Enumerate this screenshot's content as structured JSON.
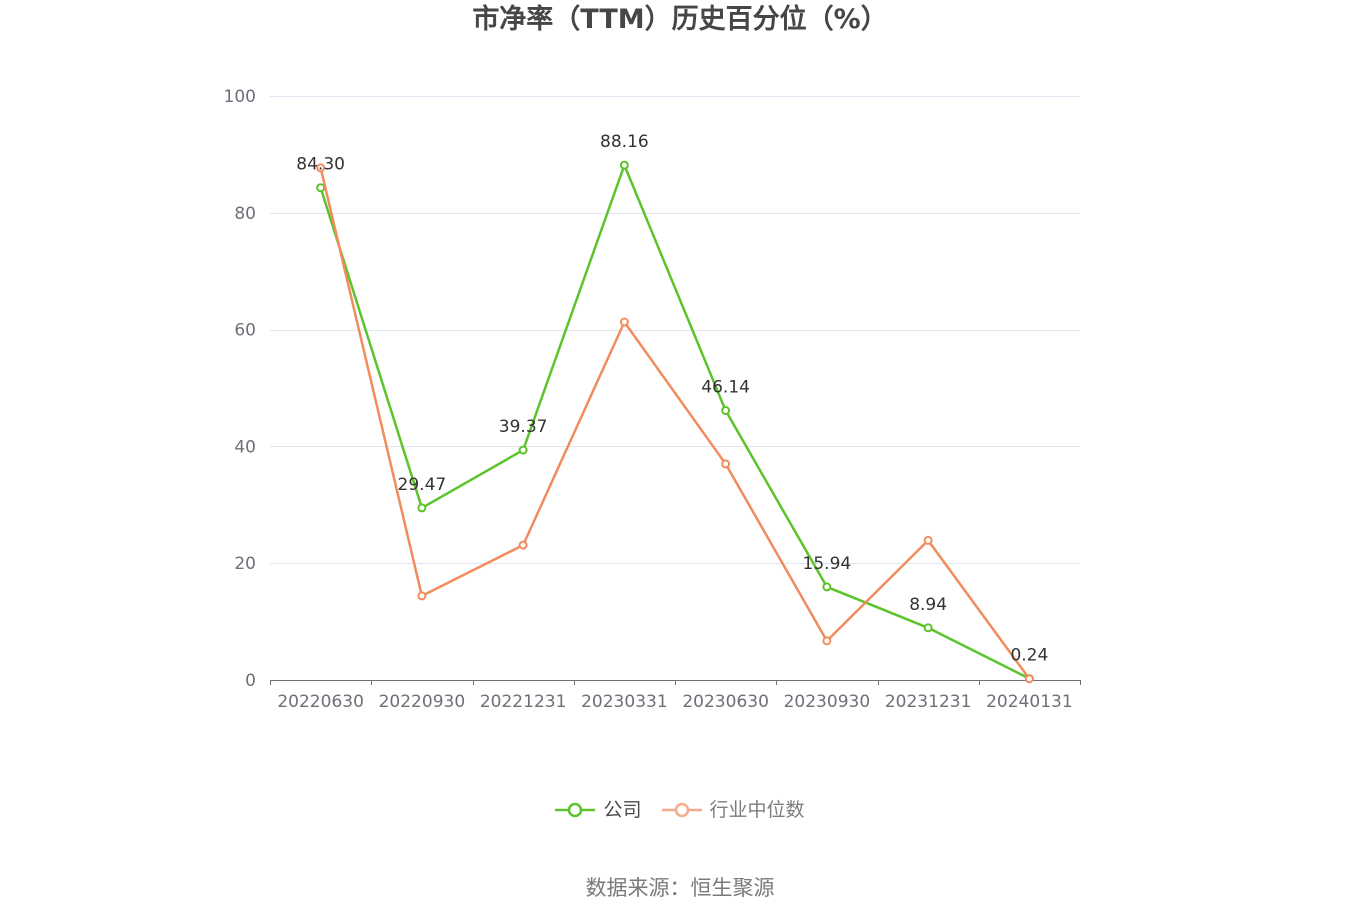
{
  "chart_data": {
    "type": "line",
    "title": "市净率（TTM）历史百分位（%）",
    "categories": [
      "20220630",
      "20220930",
      "20221231",
      "20230331",
      "20230630",
      "20230930",
      "20231231",
      "20240131"
    ],
    "series": [
      {
        "name": "公司",
        "color": "#5CC42A",
        "values": [
          84.3,
          29.47,
          39.37,
          88.16,
          46.14,
          15.94,
          8.94,
          0.24
        ],
        "labels": [
          "84.30",
          "29.47",
          "39.37",
          "88.16",
          "46.14",
          "15.94",
          "8.94",
          "0.24"
        ]
      },
      {
        "name": "行业中位数",
        "color": "#F08C5E",
        "values": [
          87.7,
          14.4,
          23.1,
          61.3,
          37.0,
          6.7,
          23.9,
          0.2
        ]
      }
    ],
    "ylim": [
      0,
      100
    ],
    "yticks": [
      0,
      20,
      40,
      60,
      80,
      100
    ],
    "grid": true,
    "legend": "bottom"
  },
  "source": "数据来源：恒生聚源"
}
